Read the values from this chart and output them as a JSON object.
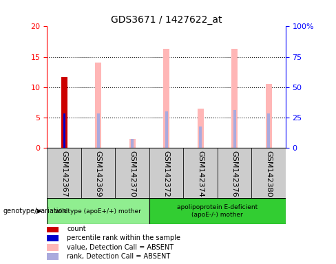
{
  "title": "GDS3671 / 1427622_at",
  "samples": [
    "GSM142367",
    "GSM142369",
    "GSM142370",
    "GSM142372",
    "GSM142374",
    "GSM142376",
    "GSM142380"
  ],
  "count_values": [
    11.7,
    null,
    null,
    null,
    null,
    null,
    null
  ],
  "percentile_values": [
    5.7,
    null,
    null,
    null,
    null,
    null,
    null
  ],
  "pink_bar_values": [
    null,
    14.0,
    1.5,
    16.3,
    6.5,
    16.3,
    10.5
  ],
  "blue_rank_values": [
    null,
    5.7,
    1.5,
    6.0,
    3.5,
    6.2,
    5.7
  ],
  "ylim_left": [
    0,
    20
  ],
  "ylim_right": [
    0,
    100
  ],
  "yticks_left": [
    0,
    5,
    10,
    15,
    20
  ],
  "yticks_right": [
    0,
    25,
    50,
    75,
    100
  ],
  "ytick_labels_right": [
    "0",
    "25",
    "50",
    "75",
    "100%"
  ],
  "group1_label": "wildtype (apoE+/+) mother",
  "group2_label": "apolipoprotein E-deficient\n(apoE-/-) mother",
  "group1_indices": [
    0,
    1,
    2
  ],
  "group2_indices": [
    3,
    4,
    5,
    6
  ],
  "group1_color": "#90ee90",
  "group2_color": "#32cd32",
  "count_color": "#cc0000",
  "percentile_color": "#0000cc",
  "pink_color": "#ffb6b6",
  "blue_rank_color": "#aaaadd",
  "background_color": "#ffffff",
  "legend_items": [
    {
      "label": "count",
      "color": "#cc0000"
    },
    {
      "label": "percentile rank within the sample",
      "color": "#0000cc"
    },
    {
      "label": "value, Detection Call = ABSENT",
      "color": "#ffb6b6"
    },
    {
      "label": "rank, Detection Call = ABSENT",
      "color": "#aaaadd"
    }
  ],
  "title_fontsize": 10,
  "tick_fontsize": 8
}
